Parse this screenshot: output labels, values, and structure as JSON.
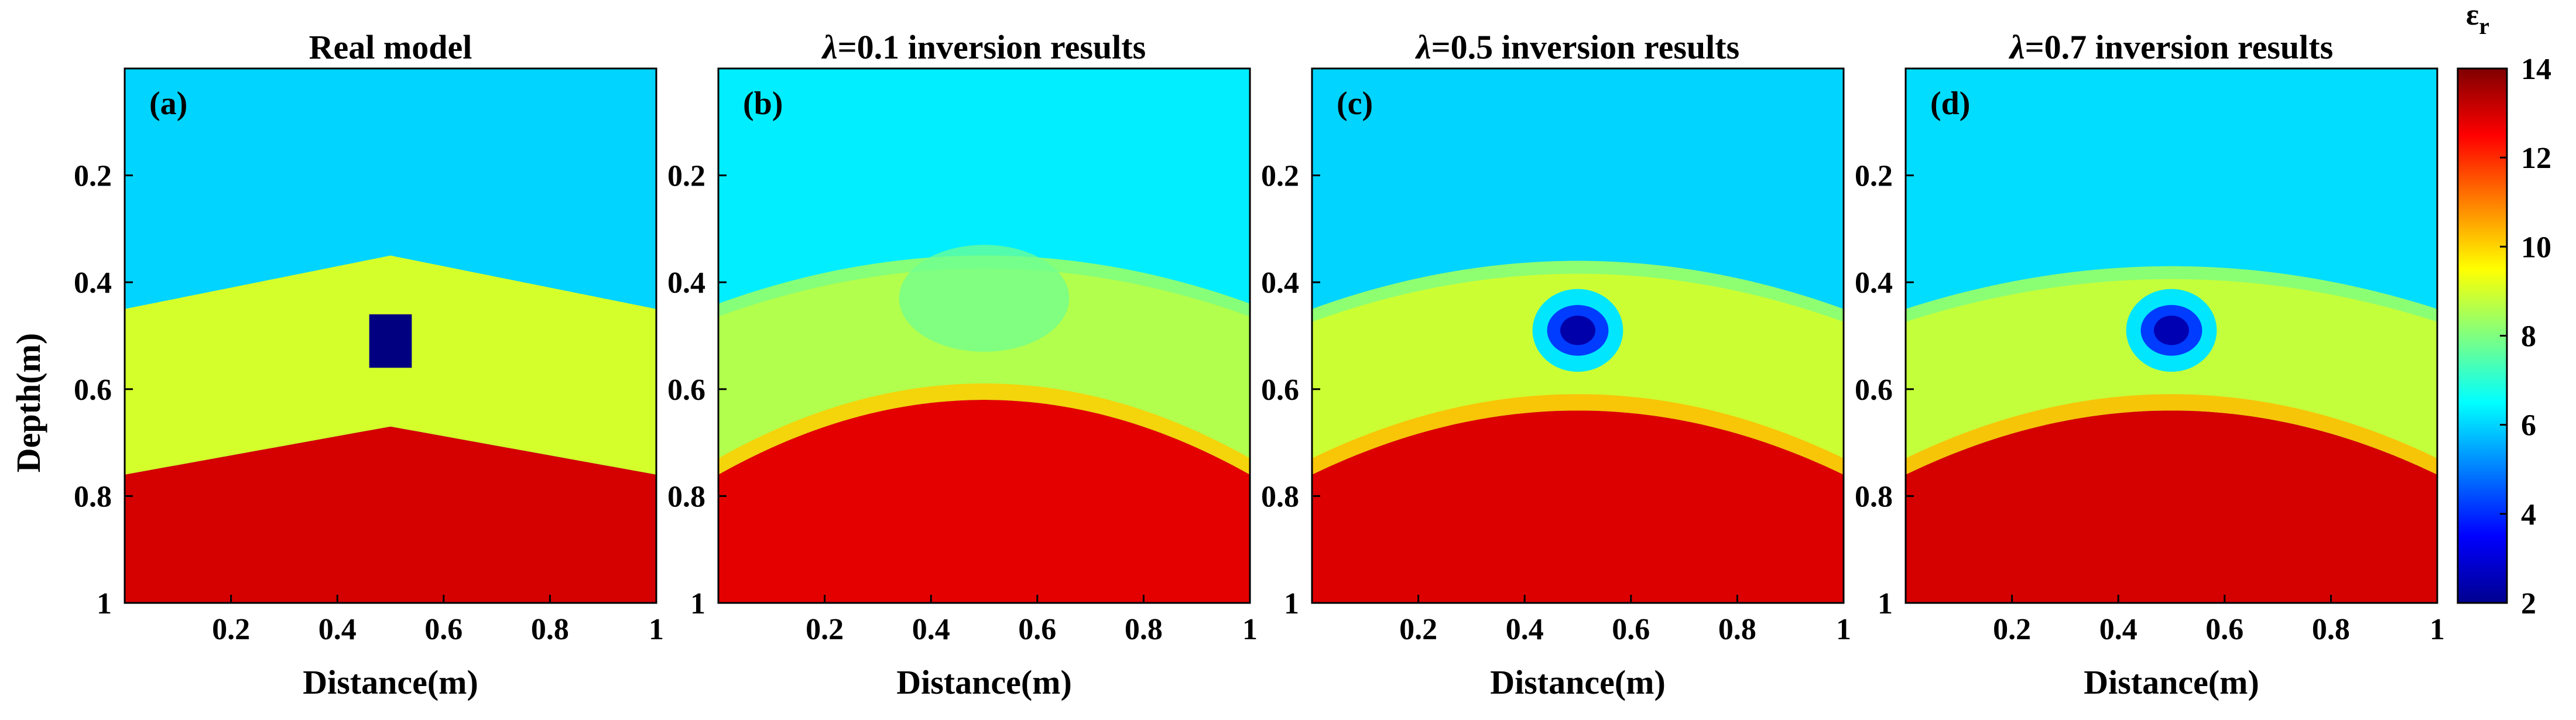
{
  "chart_data": [
    {
      "type": "heatmap",
      "panel_label": "(a)",
      "title": "Real model",
      "title_prefix": "",
      "xlabel": "Distance(m)",
      "ylabel": "Depth(m)",
      "xlim": [
        0,
        1
      ],
      "ylim": [
        0,
        1
      ],
      "xticks": [
        "0.2",
        "0.4",
        "0.6",
        "0.8",
        "1"
      ],
      "yticks": [
        "0.2",
        "0.4",
        "0.6",
        "0.8",
        "1"
      ],
      "layers": {
        "top_eps": 6.0,
        "middle_eps": 9.0,
        "bottom_eps": 13.0,
        "upper_interface": {
          "edge_depth": 0.45,
          "apex_depth": 0.35,
          "apex_x": 0.5
        },
        "lower_interface": {
          "edge_depth": 0.76,
          "apex_depth": 0.67,
          "apex_x": 0.5
        },
        "anomaly": {
          "eps": 2.0,
          "x_range": [
            0.46,
            0.54
          ],
          "depth_range": [
            0.46,
            0.56
          ]
        }
      }
    },
    {
      "type": "heatmap",
      "panel_label": "(b)",
      "title": "=0.1 inversion results",
      "title_prefix": "λ",
      "xlabel": "Distance(m)",
      "xlim": [
        0,
        1
      ],
      "ylim": [
        0,
        1
      ],
      "xticks": [
        "0.2",
        "0.4",
        "0.6",
        "0.8",
        "1"
      ],
      "yticks": [
        "0.2",
        "0.4",
        "0.6",
        "0.8",
        "1"
      ],
      "layers": {
        "top_eps": 6.3,
        "middle_eps": 8.6,
        "bottom_eps": 12.8,
        "upper_interface": {
          "edge_depth": 0.44,
          "apex_depth": 0.35,
          "apex_x": 0.5
        },
        "lower_interface": {
          "edge_depth": 0.76,
          "apex_depth": 0.62,
          "apex_x": 0.5
        },
        "anomaly": null
      }
    },
    {
      "type": "heatmap",
      "panel_label": "(c)",
      "title": "=0.5 inversion results",
      "title_prefix": "λ",
      "xlabel": "Distance(m)",
      "xlim": [
        0,
        1
      ],
      "ylim": [
        0,
        1
      ],
      "xticks": [
        "0.2",
        "0.4",
        "0.6",
        "0.8",
        "1"
      ],
      "yticks": [
        "0.2",
        "0.4",
        "0.6",
        "0.8",
        "1"
      ],
      "layers": {
        "top_eps": 6.0,
        "middle_eps": 8.9,
        "bottom_eps": 12.9,
        "upper_interface": {
          "edge_depth": 0.45,
          "apex_depth": 0.36,
          "apex_x": 0.5
        },
        "lower_interface": {
          "edge_depth": 0.76,
          "apex_depth": 0.64,
          "apex_x": 0.5
        },
        "anomaly": {
          "eps": 2.5,
          "x_center": 0.5,
          "depth_center": 0.49,
          "rx": 0.055,
          "ry": 0.05
        }
      }
    },
    {
      "type": "heatmap",
      "panel_label": "(d)",
      "title": "=0.7 inversion results",
      "title_prefix": "λ",
      "xlabel": "Distance(m)",
      "xlim": [
        0,
        1
      ],
      "ylim": [
        0,
        1
      ],
      "xticks": [
        "0.2",
        "0.4",
        "0.6",
        "0.8",
        "1"
      ],
      "yticks": [
        "0.2",
        "0.4",
        "0.6",
        "0.8",
        "1"
      ],
      "layers": {
        "top_eps": 6.1,
        "middle_eps": 8.8,
        "bottom_eps": 13.0,
        "upper_interface": {
          "edge_depth": 0.45,
          "apex_depth": 0.37,
          "apex_x": 0.5
        },
        "lower_interface": {
          "edge_depth": 0.76,
          "apex_depth": 0.64,
          "apex_x": 0.5
        },
        "anomaly": {
          "eps": 2.6,
          "x_center": 0.5,
          "depth_center": 0.49,
          "rx": 0.055,
          "ry": 0.05
        }
      }
    }
  ],
  "colorbar": {
    "label": "ε",
    "label_sub": "r",
    "min": 2,
    "max": 14,
    "ticks": [
      "2",
      "4",
      "6",
      "8",
      "10",
      "12",
      "14"
    ],
    "colormap": "jet"
  }
}
